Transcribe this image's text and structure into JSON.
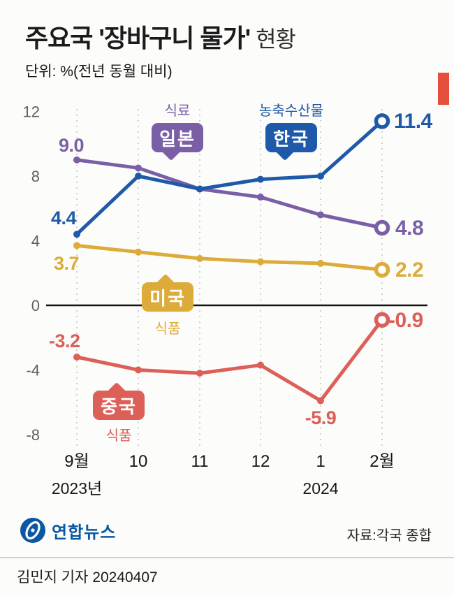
{
  "header": {
    "title_main": "주요국 '장바구니 물가'",
    "title_suffix": " 현황",
    "subtitle": "단위: %(전년 동월 대비)"
  },
  "colors": {
    "accent_red": "#e74f3d",
    "logo_blue": "#0b57a4"
  },
  "chart_data": {
    "type": "line",
    "title": "주요국 '장바구니 물가' 현황",
    "unit": "% (전년 동월 대비)",
    "x_categories": [
      "9월",
      "10",
      "11",
      "12",
      "1",
      "2월"
    ],
    "x_sub_labels": [
      {
        "text": "2023년",
        "x_index": 0
      },
      {
        "text": "2024",
        "x_index": 4
      }
    ],
    "y_ticks": [
      12,
      8,
      4,
      0,
      -4,
      -8
    ],
    "ylim": [
      -8,
      12
    ],
    "grid": "vertical-dotted",
    "legend": "inline-bubbles",
    "series": [
      {
        "id": "japan",
        "name": "일본",
        "category_label": "식료",
        "color": "#7a5fa6",
        "values": [
          9.0,
          8.5,
          7.2,
          6.7,
          5.6,
          4.8
        ],
        "first_label": "9.0",
        "last_label": "4.8"
      },
      {
        "id": "usa",
        "name": "미국",
        "category_label": "식품",
        "color": "#dcab39",
        "values": [
          3.7,
          3.3,
          2.9,
          2.7,
          2.6,
          2.2
        ],
        "first_label": "3.7",
        "last_label": "2.2"
      },
      {
        "id": "china",
        "name": "중국",
        "category_label": "식품",
        "color": "#dc5f58",
        "values": [
          -3.2,
          -4.0,
          -4.2,
          -3.7,
          -5.9,
          -0.9
        ],
        "first_label": "-3.2",
        "last_label": "-0.9",
        "dip_label": "-5.9"
      },
      {
        "id": "korea",
        "name": "한국",
        "category_label": "농축수산물",
        "color": "#1e5aa9",
        "values": [
          4.4,
          8.0,
          7.2,
          7.8,
          8.0,
          11.4
        ],
        "first_label": "4.4",
        "last_label": "11.4"
      }
    ]
  },
  "footer": {
    "logo_text": "연합뉴스",
    "source": "자료:각국 종합",
    "byline": "김민지 기자 20240407"
  }
}
